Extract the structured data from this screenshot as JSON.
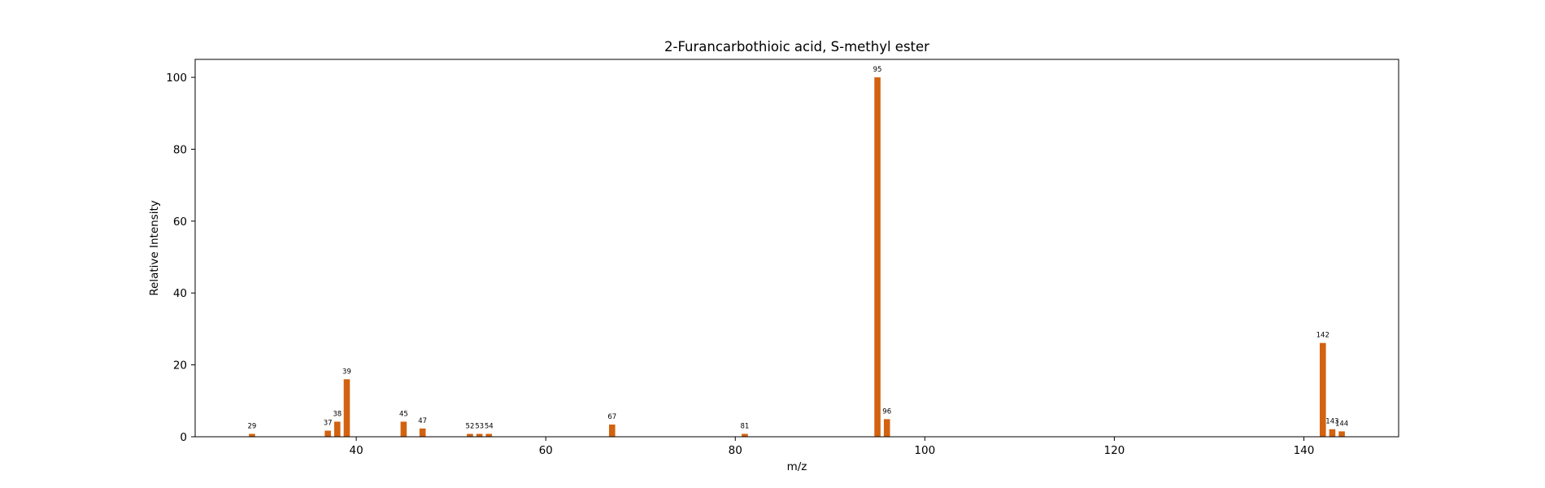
{
  "chart_data": {
    "type": "bar",
    "title": "2-Furancarbothioic acid, S-methyl ester",
    "xlabel": "m/z",
    "ylabel": "Relative Intensity",
    "xlim": [
      23,
      150
    ],
    "ylim": [
      0,
      105
    ],
    "xticks": [
      40,
      60,
      80,
      100,
      120,
      140
    ],
    "yticks": [
      0,
      20,
      40,
      60,
      80,
      100
    ],
    "grid": false,
    "bar_color": "#d2620f",
    "peaks": [
      {
        "mz": 29,
        "intensity": 0.8,
        "label": "29"
      },
      {
        "mz": 37,
        "intensity": 1.7,
        "label": "37"
      },
      {
        "mz": 38,
        "intensity": 4.2,
        "label": "38"
      },
      {
        "mz": 39,
        "intensity": 16.0,
        "label": "39"
      },
      {
        "mz": 45,
        "intensity": 4.2,
        "label": "45"
      },
      {
        "mz": 47,
        "intensity": 2.3,
        "label": "47"
      },
      {
        "mz": 52,
        "intensity": 0.8,
        "label": "52"
      },
      {
        "mz": 53,
        "intensity": 0.8,
        "label": "53"
      },
      {
        "mz": 54,
        "intensity": 0.8,
        "label": "54"
      },
      {
        "mz": 67,
        "intensity": 3.4,
        "label": "67"
      },
      {
        "mz": 81,
        "intensity": 0.8,
        "label": "81"
      },
      {
        "mz": 95,
        "intensity": 100.0,
        "label": "95"
      },
      {
        "mz": 96,
        "intensity": 4.9,
        "label": "96"
      },
      {
        "mz": 142,
        "intensity": 26.1,
        "label": "142"
      },
      {
        "mz": 143,
        "intensity": 2.1,
        "label": "143"
      },
      {
        "mz": 144,
        "intensity": 1.5,
        "label": "144"
      }
    ]
  }
}
